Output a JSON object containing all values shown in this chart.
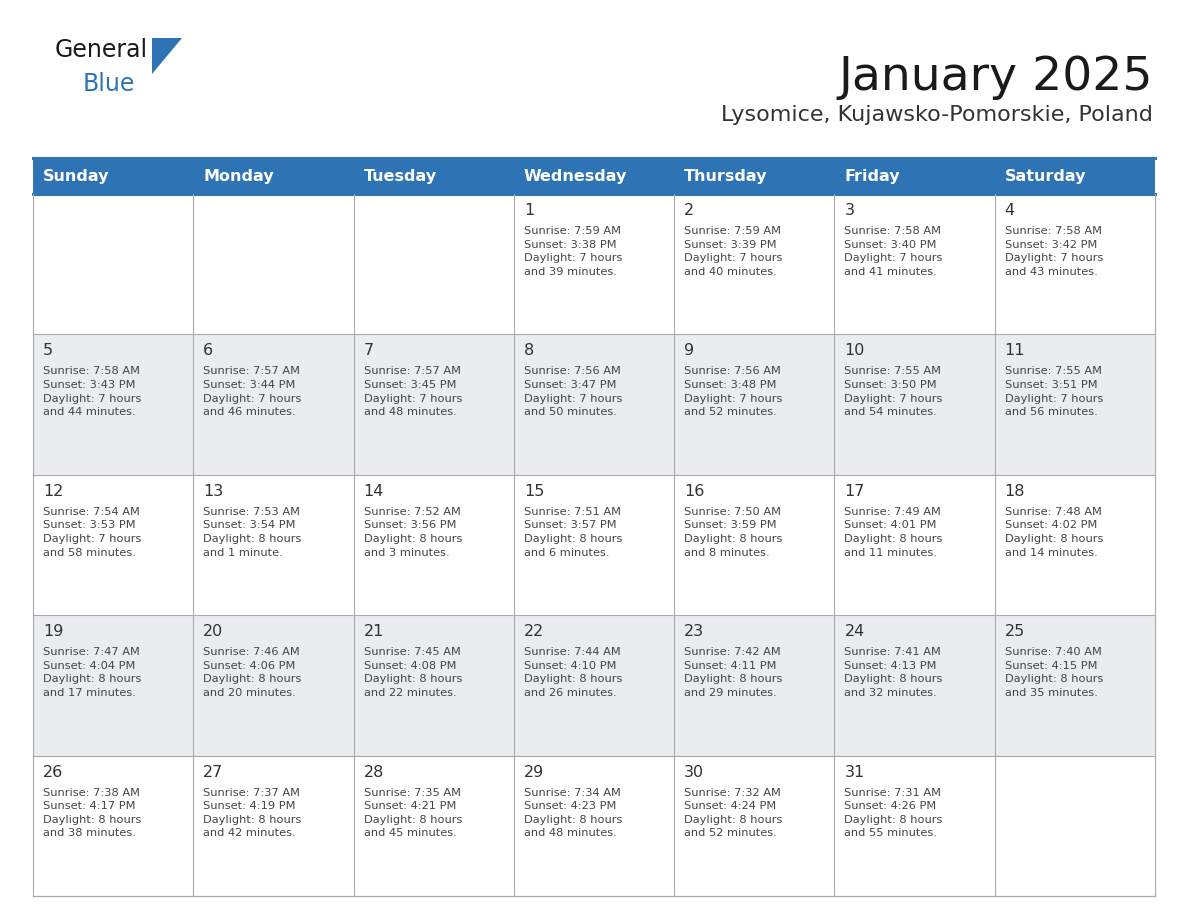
{
  "title": "January 2025",
  "subtitle": "Lysomice, Kujawsko-Pomorskie, Poland",
  "days_of_week": [
    "Sunday",
    "Monday",
    "Tuesday",
    "Wednesday",
    "Thursday",
    "Friday",
    "Saturday"
  ],
  "header_bg": "#2E74B5",
  "header_text": "#FFFFFF",
  "cell_bg_light": "#FFFFFF",
  "cell_bg_dark": "#EAECF0",
  "separator_color": "#2E74B5",
  "grid_line_color": "#AAAAAA",
  "text_color": "#444444",
  "day_num_color": "#333333",
  "title_color": "#1a1a1a",
  "subtitle_color": "#333333",
  "logo_general_color": "#1a1a1a",
  "logo_blue_color": "#2E74B5",
  "logo_triangle_color": "#2E74B5",
  "weeks": [
    [
      {
        "day": null,
        "info": null
      },
      {
        "day": null,
        "info": null
      },
      {
        "day": null,
        "info": null
      },
      {
        "day": 1,
        "info": "Sunrise: 7:59 AM\nSunset: 3:38 PM\nDaylight: 7 hours\nand 39 minutes."
      },
      {
        "day": 2,
        "info": "Sunrise: 7:59 AM\nSunset: 3:39 PM\nDaylight: 7 hours\nand 40 minutes."
      },
      {
        "day": 3,
        "info": "Sunrise: 7:58 AM\nSunset: 3:40 PM\nDaylight: 7 hours\nand 41 minutes."
      },
      {
        "day": 4,
        "info": "Sunrise: 7:58 AM\nSunset: 3:42 PM\nDaylight: 7 hours\nand 43 minutes."
      }
    ],
    [
      {
        "day": 5,
        "info": "Sunrise: 7:58 AM\nSunset: 3:43 PM\nDaylight: 7 hours\nand 44 minutes."
      },
      {
        "day": 6,
        "info": "Sunrise: 7:57 AM\nSunset: 3:44 PM\nDaylight: 7 hours\nand 46 minutes."
      },
      {
        "day": 7,
        "info": "Sunrise: 7:57 AM\nSunset: 3:45 PM\nDaylight: 7 hours\nand 48 minutes."
      },
      {
        "day": 8,
        "info": "Sunrise: 7:56 AM\nSunset: 3:47 PM\nDaylight: 7 hours\nand 50 minutes."
      },
      {
        "day": 9,
        "info": "Sunrise: 7:56 AM\nSunset: 3:48 PM\nDaylight: 7 hours\nand 52 minutes."
      },
      {
        "day": 10,
        "info": "Sunrise: 7:55 AM\nSunset: 3:50 PM\nDaylight: 7 hours\nand 54 minutes."
      },
      {
        "day": 11,
        "info": "Sunrise: 7:55 AM\nSunset: 3:51 PM\nDaylight: 7 hours\nand 56 minutes."
      }
    ],
    [
      {
        "day": 12,
        "info": "Sunrise: 7:54 AM\nSunset: 3:53 PM\nDaylight: 7 hours\nand 58 minutes."
      },
      {
        "day": 13,
        "info": "Sunrise: 7:53 AM\nSunset: 3:54 PM\nDaylight: 8 hours\nand 1 minute."
      },
      {
        "day": 14,
        "info": "Sunrise: 7:52 AM\nSunset: 3:56 PM\nDaylight: 8 hours\nand 3 minutes."
      },
      {
        "day": 15,
        "info": "Sunrise: 7:51 AM\nSunset: 3:57 PM\nDaylight: 8 hours\nand 6 minutes."
      },
      {
        "day": 16,
        "info": "Sunrise: 7:50 AM\nSunset: 3:59 PM\nDaylight: 8 hours\nand 8 minutes."
      },
      {
        "day": 17,
        "info": "Sunrise: 7:49 AM\nSunset: 4:01 PM\nDaylight: 8 hours\nand 11 minutes."
      },
      {
        "day": 18,
        "info": "Sunrise: 7:48 AM\nSunset: 4:02 PM\nDaylight: 8 hours\nand 14 minutes."
      }
    ],
    [
      {
        "day": 19,
        "info": "Sunrise: 7:47 AM\nSunset: 4:04 PM\nDaylight: 8 hours\nand 17 minutes."
      },
      {
        "day": 20,
        "info": "Sunrise: 7:46 AM\nSunset: 4:06 PM\nDaylight: 8 hours\nand 20 minutes."
      },
      {
        "day": 21,
        "info": "Sunrise: 7:45 AM\nSunset: 4:08 PM\nDaylight: 8 hours\nand 22 minutes."
      },
      {
        "day": 22,
        "info": "Sunrise: 7:44 AM\nSunset: 4:10 PM\nDaylight: 8 hours\nand 26 minutes."
      },
      {
        "day": 23,
        "info": "Sunrise: 7:42 AM\nSunset: 4:11 PM\nDaylight: 8 hours\nand 29 minutes."
      },
      {
        "day": 24,
        "info": "Sunrise: 7:41 AM\nSunset: 4:13 PM\nDaylight: 8 hours\nand 32 minutes."
      },
      {
        "day": 25,
        "info": "Sunrise: 7:40 AM\nSunset: 4:15 PM\nDaylight: 8 hours\nand 35 minutes."
      }
    ],
    [
      {
        "day": 26,
        "info": "Sunrise: 7:38 AM\nSunset: 4:17 PM\nDaylight: 8 hours\nand 38 minutes."
      },
      {
        "day": 27,
        "info": "Sunrise: 7:37 AM\nSunset: 4:19 PM\nDaylight: 8 hours\nand 42 minutes."
      },
      {
        "day": 28,
        "info": "Sunrise: 7:35 AM\nSunset: 4:21 PM\nDaylight: 8 hours\nand 45 minutes."
      },
      {
        "day": 29,
        "info": "Sunrise: 7:34 AM\nSunset: 4:23 PM\nDaylight: 8 hours\nand 48 minutes."
      },
      {
        "day": 30,
        "info": "Sunrise: 7:32 AM\nSunset: 4:24 PM\nDaylight: 8 hours\nand 52 minutes."
      },
      {
        "day": 31,
        "info": "Sunrise: 7:31 AM\nSunset: 4:26 PM\nDaylight: 8 hours\nand 55 minutes."
      },
      {
        "day": null,
        "info": null
      }
    ]
  ]
}
